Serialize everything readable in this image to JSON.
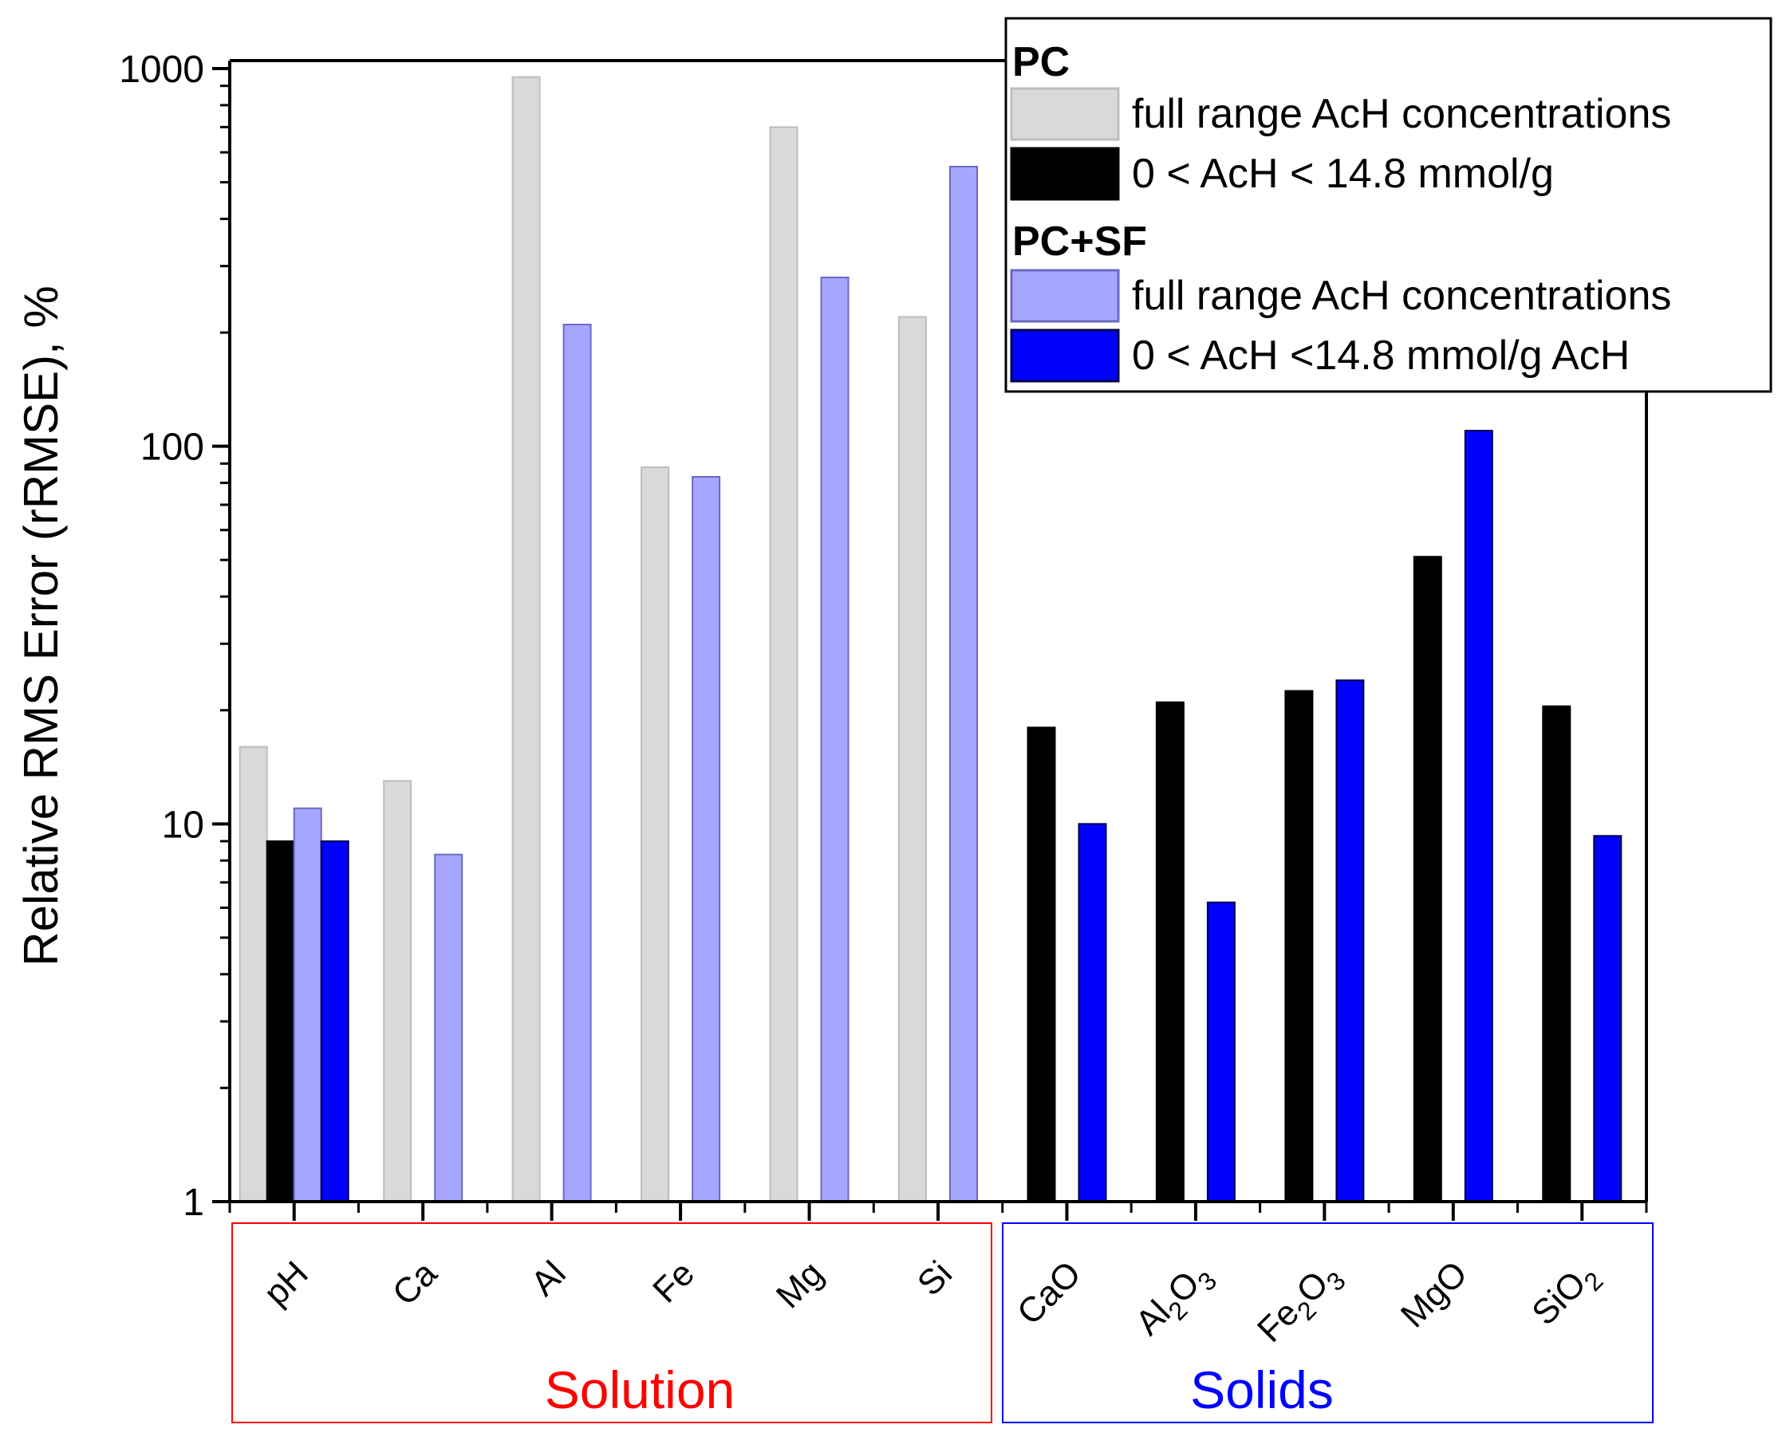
{
  "chart_data": {
    "type": "bar",
    "scale": "log",
    "ylabel": "Relative RMS Error (rRMSE), %",
    "ylim": [
      1,
      1000
    ],
    "yticks": [
      "1",
      "10",
      "100",
      "1000"
    ],
    "categories": [
      {
        "key": "pH",
        "label": "pH"
      },
      {
        "key": "Ca",
        "label": "Ca"
      },
      {
        "key": "Al",
        "label": "Al"
      },
      {
        "key": "Fe",
        "label": "Fe"
      },
      {
        "key": "Mg",
        "label": "Mg"
      },
      {
        "key": "Si",
        "label": "Si"
      },
      {
        "key": "CaO",
        "label": "CaO"
      },
      {
        "key": "Al2O3",
        "label": "Al",
        "sub1": "2",
        "mid": "O",
        "sub2": "3"
      },
      {
        "key": "Fe2O3",
        "label": "Fe",
        "sub1": "2",
        "mid": "O",
        "sub2": "3"
      },
      {
        "key": "MgO",
        "label": "MgO"
      },
      {
        "key": "SiO2",
        "label": "SiO",
        "sub1": "2"
      }
    ],
    "series": [
      {
        "name": "PC full range AcH concentrations",
        "group": "PC",
        "label": "full range AcH concentrations",
        "color": "#d9d9d9",
        "stroke": "#bdbdbd",
        "values": [
          16,
          13,
          950,
          88,
          700,
          220,
          null,
          null,
          null,
          null,
          null
        ]
      },
      {
        "name": "PC 0 < AcH < 14.8 mmol/g",
        "group": "PC",
        "label": "0 < AcH < 14.8 mmol/g",
        "color": "#000000",
        "stroke": "#000000",
        "values": [
          9,
          null,
          null,
          null,
          null,
          null,
          18,
          21,
          22.5,
          51,
          20.5
        ]
      },
      {
        "name": "PC+SF full range AcH concentrations",
        "group": "PC+SF",
        "label": "full range AcH concentrations",
        "color": "#a6a6ff",
        "stroke": "#6a6ac0",
        "values": [
          11,
          8.3,
          210,
          83,
          280,
          550,
          null,
          null,
          null,
          null,
          null
        ]
      },
      {
        "name": "PC+SF 0 < AcH <14.8 mmol/g AcH",
        "group": "PC+SF",
        "label": "0 < AcH <14.8 mmol/g AcH",
        "color": "#0000ff",
        "stroke": "#00004a",
        "values": [
          9,
          null,
          null,
          null,
          null,
          null,
          10,
          6.2,
          24,
          110,
          9.3
        ]
      }
    ],
    "legend": {
      "position": "top-right",
      "group_titles": [
        "PC",
        "PC+SF"
      ]
    },
    "groups": [
      {
        "name": "Solution",
        "color": "#ff0000"
      },
      {
        "name": "Solids",
        "color": "#0000ff"
      }
    ]
  }
}
